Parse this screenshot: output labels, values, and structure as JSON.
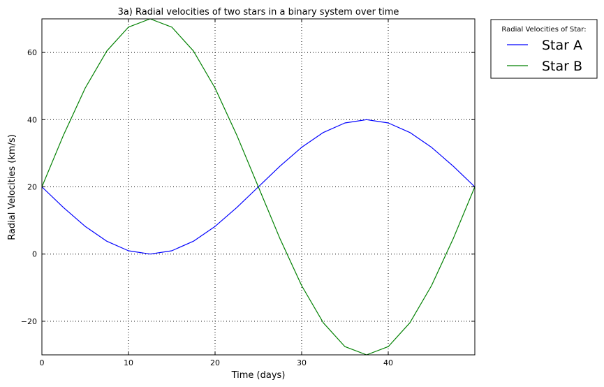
{
  "chart_data": {
    "type": "line",
    "title": "3a) Radial velocities of two stars in a binary system over time",
    "xlabel": "Time (days)",
    "ylabel": "Radial Velocities (km/s)",
    "xlim": [
      0,
      50
    ],
    "ylim": [
      -30,
      70
    ],
    "xticks": [
      0,
      10,
      20,
      30,
      40
    ],
    "yticks": [
      -20,
      0,
      20,
      40,
      60
    ],
    "grid": true,
    "legend": {
      "title": "Radial Velocities of Star:",
      "placement": "outside-top-right"
    },
    "x": [
      0,
      2.5,
      5,
      7.5,
      10,
      12.5,
      15,
      17.5,
      20,
      22.5,
      25,
      27.5,
      30,
      32.5,
      35,
      37.5,
      40,
      42.5,
      45,
      47.5,
      50
    ],
    "series": [
      {
        "name": "Star A",
        "color": "#0000ff",
        "values": [
          20,
          13.82,
          8.24,
          3.82,
          0.98,
          0,
          0.98,
          3.82,
          8.24,
          13.82,
          20,
          26.18,
          31.76,
          36.18,
          39.02,
          40,
          39.02,
          36.18,
          31.76,
          26.18,
          20
        ]
      },
      {
        "name": "Star B",
        "color": "#008000",
        "values": [
          20,
          35.45,
          49.39,
          60.45,
          67.55,
          70,
          67.55,
          60.45,
          49.39,
          35.45,
          20,
          4.55,
          -9.39,
          -20.45,
          -27.55,
          -30,
          -27.55,
          -20.45,
          -9.39,
          4.55,
          20
        ]
      }
    ]
  }
}
